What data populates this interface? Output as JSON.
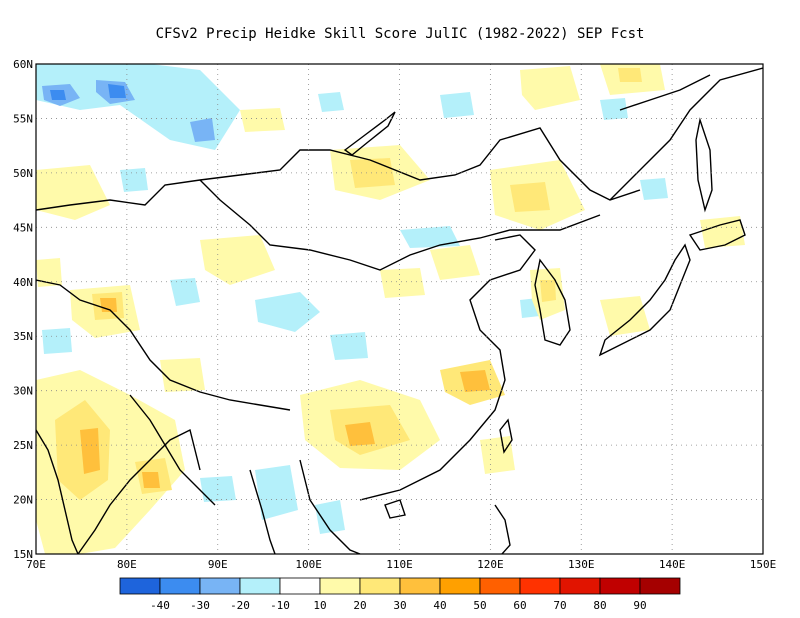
{
  "title": "CFSv2 Precip Heidke Skill Score JulIC (1982-2022) SEP Fcst",
  "map": {
    "lon_labels": [
      "70E",
      "80E",
      "90E",
      "100E",
      "110E",
      "120E",
      "130E",
      "140E",
      "150E"
    ],
    "lat_labels": [
      "15N",
      "20N",
      "25N",
      "30N",
      "35N",
      "40N",
      "45N",
      "50N",
      "55N",
      "60N"
    ],
    "lon_range": [
      70,
      150
    ],
    "lat_range": [
      15,
      60
    ]
  },
  "colorbar": {
    "labels": [
      "-40",
      "-30",
      "-20",
      "-10",
      "10",
      "20",
      "30",
      "40",
      "50",
      "60",
      "70",
      "80",
      "90"
    ],
    "colors": [
      "#1e64dc",
      "#3c8cf0",
      "#78b4f5",
      "#b4f0fa",
      "#ffffff",
      "#fffaaa",
      "#ffe878",
      "#ffc03c",
      "#ffa000",
      "#ff6000",
      "#ff3200",
      "#e11400",
      "#c00000",
      "#a50000"
    ]
  },
  "colors": {
    "neg_light": "#b4f0fa",
    "neg_mid": "#78b4f5",
    "neg_strong": "#3c8cf0",
    "pos_light": "#fffaaa",
    "pos_mid": "#ffe878",
    "pos_strong": "#ffc03c",
    "pos_orange": "#ffa000"
  }
}
